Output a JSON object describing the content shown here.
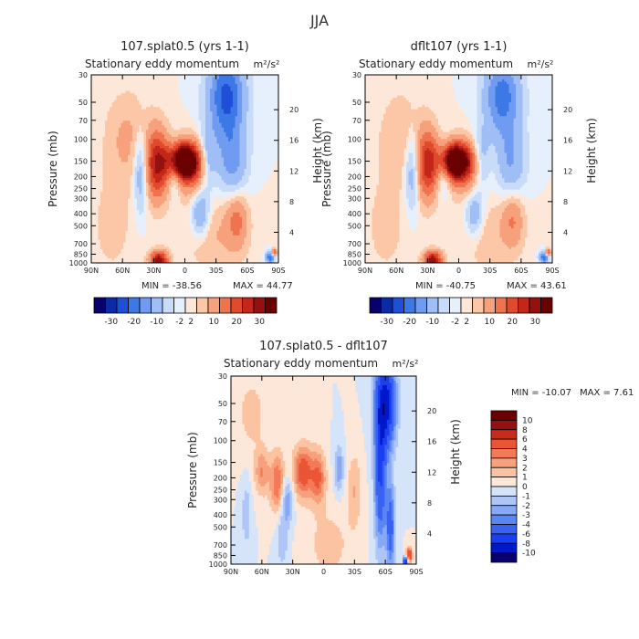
{
  "figure": {
    "title": "JJA"
  },
  "chart_data": [
    {
      "type": "heatmap",
      "title": "107.splat0.5 (yrs 1-1)",
      "subtitle": "Stationary eddy momentum",
      "units": "m²/s²",
      "ylabel": "Pressure (mb)",
      "y2label": "Height (km)",
      "x_ticks": [
        "90N",
        "60N",
        "30N",
        "0",
        "30S",
        "60S",
        "90S"
      ],
      "y_ticks": [
        "30",
        "50",
        "70",
        "100",
        "150",
        "200",
        "250",
        "300",
        "400",
        "500",
        "700",
        "850",
        "1000"
      ],
      "y2_ticks": [
        "20",
        "16",
        "12",
        "8",
        "4"
      ],
      "min_label": "MIN = -38.56",
      "max_label": "MAX = 44.77",
      "min": -38.56,
      "max": 44.77,
      "colorbar_labels": [
        "-30",
        "-20",
        "-10",
        "-2",
        "2",
        "10",
        "20",
        "30"
      ],
      "features": [
        {
          "lat": 2,
          "p": 150,
          "v": 44,
          "sx": 10,
          "sy": 0.22
        },
        {
          "lat": -6,
          "p": 170,
          "v": 14,
          "sx": 14,
          "sy": 0.35
        },
        {
          "lat": 27,
          "p": 160,
          "v": 24,
          "sx": 8,
          "sy": 0.45
        },
        {
          "lat": 10,
          "p": 175,
          "v": -14,
          "sx": 5,
          "sy": 0.3
        },
        {
          "lat": 42,
          "p": 180,
          "v": -12,
          "sx": 5,
          "sy": 0.5
        },
        {
          "lat": 25,
          "p": 950,
          "v": 28,
          "sx": 6,
          "sy": 0.12
        },
        {
          "lat": -22,
          "p": 150,
          "v": -12,
          "sx": 6,
          "sy": 0.4
        },
        {
          "lat": -40,
          "p": 45,
          "v": -22,
          "sx": 12,
          "sy": 0.55
        },
        {
          "lat": -45,
          "p": 150,
          "v": -12,
          "sx": 10,
          "sy": 0.45
        },
        {
          "lat": -15,
          "p": 400,
          "v": -12,
          "sx": 6,
          "sy": 0.3
        },
        {
          "lat": -50,
          "p": 450,
          "v": 10,
          "sx": 7,
          "sy": 0.35
        },
        {
          "lat": -82,
          "p": 900,
          "v": -20,
          "sx": 3,
          "sy": 0.08
        },
        {
          "lat": -86,
          "p": 820,
          "v": 18,
          "sx": 2,
          "sy": 0.05
        },
        {
          "lat": 55,
          "p": 100,
          "v": 6,
          "sx": 15,
          "sy": 0.6
        },
        {
          "lat": -30,
          "p": 600,
          "v": 5,
          "sx": 20,
          "sy": 0.5
        },
        {
          "lat": 70,
          "p": 500,
          "v": 3,
          "sx": 15,
          "sy": 0.7
        }
      ]
    },
    {
      "type": "heatmap",
      "title": "dflt107 (yrs 1-1)",
      "subtitle": "Stationary eddy momentum",
      "units": "m²/s²",
      "ylabel": "Pressure (mb)",
      "y2label": "Height (km)",
      "x_ticks": [
        "90N",
        "60N",
        "30N",
        "0",
        "30S",
        "60S",
        "90S"
      ],
      "y_ticks": [
        "30",
        "50",
        "70",
        "100",
        "150",
        "200",
        "250",
        "300",
        "400",
        "500",
        "700",
        "850",
        "1000"
      ],
      "y2_ticks": [
        "20",
        "16",
        "12",
        "8",
        "4"
      ],
      "min_label": "MIN = -40.75",
      "max_label": "MAX = 43.61",
      "min": -40.75,
      "max": 43.61,
      "colorbar_labels": [
        "-30",
        "-20",
        "-10",
        "-2",
        "2",
        "10",
        "20",
        "30"
      ],
      "features": [
        {
          "lat": 4,
          "p": 150,
          "v": 43,
          "sx": 10,
          "sy": 0.22
        },
        {
          "lat": -6,
          "p": 170,
          "v": 12,
          "sx": 14,
          "sy": 0.35
        },
        {
          "lat": 30,
          "p": 160,
          "v": 22,
          "sx": 7,
          "sy": 0.45
        },
        {
          "lat": 14,
          "p": 175,
          "v": -12,
          "sx": 5,
          "sy": 0.3
        },
        {
          "lat": 45,
          "p": 180,
          "v": -10,
          "sx": 5,
          "sy": 0.5
        },
        {
          "lat": 25,
          "p": 950,
          "v": 28,
          "sx": 6,
          "sy": 0.12
        },
        {
          "lat": -22,
          "p": 150,
          "v": -10,
          "sx": 6,
          "sy": 0.4
        },
        {
          "lat": -42,
          "p": 45,
          "v": -18,
          "sx": 12,
          "sy": 0.5
        },
        {
          "lat": -50,
          "p": 150,
          "v": -10,
          "sx": 10,
          "sy": 0.45
        },
        {
          "lat": -15,
          "p": 400,
          "v": -10,
          "sx": 6,
          "sy": 0.3
        },
        {
          "lat": -52,
          "p": 450,
          "v": 9,
          "sx": 7,
          "sy": 0.35
        },
        {
          "lat": -82,
          "p": 900,
          "v": -20,
          "sx": 3,
          "sy": 0.08
        },
        {
          "lat": -86,
          "p": 820,
          "v": 18,
          "sx": 2,
          "sy": 0.05
        },
        {
          "lat": 55,
          "p": 100,
          "v": 5,
          "sx": 15,
          "sy": 0.6
        },
        {
          "lat": -30,
          "p": 600,
          "v": 4,
          "sx": 20,
          "sy": 0.5
        },
        {
          "lat": 70,
          "p": 500,
          "v": 3,
          "sx": 15,
          "sy": 0.7
        }
      ]
    },
    {
      "type": "heatmap",
      "title": "107.splat0.5 - dflt107",
      "subtitle": "Stationary eddy momentum",
      "units": "m²/s²",
      "ylabel": "Pressure (mb)",
      "y2label": "Height (km)",
      "x_ticks": [
        "90N",
        "60N",
        "30N",
        "0",
        "30S",
        "60S",
        "90S"
      ],
      "y_ticks": [
        "30",
        "50",
        "70",
        "100",
        "150",
        "200",
        "250",
        "300",
        "400",
        "500",
        "700",
        "850",
        "1000"
      ],
      "y2_ticks": [
        "20",
        "16",
        "12",
        "8",
        "4"
      ],
      "min_label": "MIN = -10.07",
      "max_label": "MAX =   7.61",
      "min": -10.07,
      "max": 7.61,
      "colorbar_labels": [
        "10",
        "8",
        "6",
        "4",
        "3",
        "2",
        "1",
        "0",
        "-1",
        "-2",
        "-3",
        "-4",
        "-6",
        "-8",
        "-10"
      ],
      "features": [
        {
          "lat": -60,
          "p": 50,
          "v": -9,
          "sx": 7,
          "sy": 0.6
        },
        {
          "lat": -55,
          "p": 200,
          "v": -6,
          "sx": 4,
          "sy": 0.9
        },
        {
          "lat": -65,
          "p": 500,
          "v": -5,
          "sx": 3,
          "sy": 0.6
        },
        {
          "lat": 20,
          "p": 180,
          "v": 5,
          "sx": 7,
          "sy": 0.35
        },
        {
          "lat": 5,
          "p": 200,
          "v": 4,
          "sx": 5,
          "sy": 0.35
        },
        {
          "lat": 45,
          "p": 220,
          "v": 4,
          "sx": 5,
          "sy": 0.4
        },
        {
          "lat": 60,
          "p": 180,
          "v": 3,
          "sx": 5,
          "sy": 0.3
        },
        {
          "lat": 35,
          "p": 300,
          "v": -3,
          "sx": 4,
          "sy": 0.3
        },
        {
          "lat": -15,
          "p": 170,
          "v": -3,
          "sx": 3,
          "sy": 0.3
        },
        {
          "lat": -30,
          "p": 250,
          "v": 2,
          "sx": 5,
          "sy": 0.5
        },
        {
          "lat": 75,
          "p": 400,
          "v": -2,
          "sx": 3,
          "sy": 0.4
        },
        {
          "lat": -83,
          "p": 850,
          "v": 7,
          "sx": 2,
          "sy": 0.1
        },
        {
          "lat": -80,
          "p": 950,
          "v": -8,
          "sx": 2,
          "sy": 0.07
        },
        {
          "lat": 40,
          "p": 600,
          "v": -2,
          "sx": 4,
          "sy": 0.4
        },
        {
          "lat": -5,
          "p": 700,
          "v": 1.5,
          "sx": 15,
          "sy": 0.5
        },
        {
          "lat": 70,
          "p": 60,
          "v": 1.5,
          "sx": 10,
          "sy": 0.5
        }
      ]
    }
  ],
  "palettes": {
    "top": [
      "#08006b",
      "#0a2aa6",
      "#1f4fd8",
      "#3c79e6",
      "#6f9bf0",
      "#9ebef5",
      "#c8dcfa",
      "#e6f0fc",
      "#fde7d8",
      "#fbc7a6",
      "#f7a07c",
      "#f0734f",
      "#e04a2d",
      "#c4261a",
      "#961010",
      "#6b0000"
    ],
    "diff": [
      "#08006b",
      "#0018c8",
      "#1a3ff0",
      "#3a62f2",
      "#5a86f3",
      "#86a8f5",
      "#aec6f7",
      "#d6e4fa",
      "#fde7d8",
      "#fbc3a1",
      "#f7a07c",
      "#f37a58",
      "#ea5535",
      "#c82b1c",
      "#961010",
      "#6b0000"
    ]
  }
}
